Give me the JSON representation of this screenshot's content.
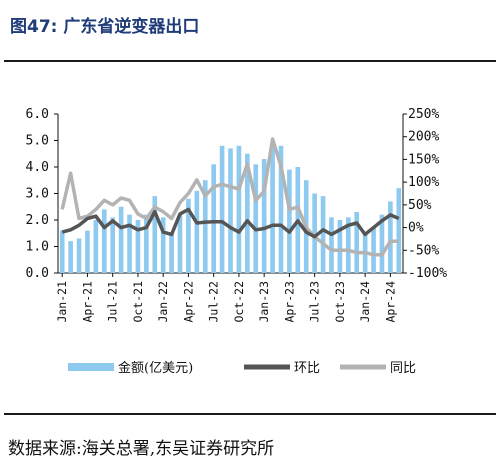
{
  "header": {
    "title": "图47:  广东省逆变器出口"
  },
  "footer": {
    "source": "数据来源:海关总署,东吴证券研究所"
  },
  "colors": {
    "bar": "#8ec9f0",
    "mom": "#555555",
    "yoy": "#b3b3b3"
  },
  "chart_data": {
    "type": "bar+line",
    "categories": [
      "Jan-21",
      "Feb-21",
      "Mar-21",
      "Apr-21",
      "May-21",
      "Jun-21",
      "Jul-21",
      "Aug-21",
      "Sep-21",
      "Oct-21",
      "Nov-21",
      "Dec-21",
      "Jan-22",
      "Feb-22",
      "Mar-22",
      "Apr-22",
      "May-22",
      "Jun-22",
      "Jul-22",
      "Aug-22",
      "Sep-22",
      "Oct-22",
      "Nov-22",
      "Dec-22",
      "Jan-23",
      "Feb-23",
      "Mar-23",
      "Apr-23",
      "May-23",
      "Jun-23",
      "Jul-23",
      "Aug-23",
      "Sep-23",
      "Oct-23",
      "Nov-23",
      "Dec-23",
      "Jan-24",
      "Feb-24",
      "Mar-24",
      "Apr-24",
      "May-24"
    ],
    "xtick_labels": [
      "Jan-21",
      "Apr-21",
      "Jul-21",
      "Oct-21",
      "Jan-22",
      "Apr-22",
      "Jul-22",
      "Oct-22",
      "Jan-23",
      "Apr-23",
      "Jul-23",
      "Oct-23",
      "Jan-24",
      "Apr-24"
    ],
    "y_left": {
      "ylim": [
        0,
        6
      ],
      "ticks": [
        "0.0",
        "1.0",
        "2.0",
        "3.0",
        "4.0",
        "5.0",
        "6.0"
      ]
    },
    "y_right": {
      "ylim": [
        -100,
        250
      ],
      "ticks": [
        "-100%",
        "-50%",
        "0%",
        "50%",
        "100%",
        "150%",
        "200%",
        "250%"
      ]
    },
    "series": [
      {
        "name": "金额(亿美元)",
        "kind": "bar",
        "axis": "left",
        "values": [
          1.6,
          1.2,
          1.3,
          1.6,
          2.0,
          2.4,
          2.1,
          2.5,
          2.2,
          2.0,
          2.2,
          2.9,
          2.1,
          1.5,
          2.2,
          2.8,
          3.1,
          3.5,
          4.1,
          4.8,
          4.7,
          4.8,
          4.5,
          4.1,
          4.3,
          4.9,
          4.8,
          3.9,
          4.0,
          3.5,
          3.0,
          2.9,
          2.1,
          2.0,
          2.1,
          2.3,
          1.5,
          1.7,
          2.2,
          2.7,
          3.2
        ]
      },
      {
        "name": "环比",
        "kind": "line",
        "axis": "right",
        "values": [
          -10,
          -5,
          5,
          20,
          25,
          0,
          15,
          0,
          5,
          -5,
          0,
          35,
          -10,
          -15,
          30,
          40,
          10,
          12,
          13,
          13,
          0,
          -10,
          15,
          -5,
          -2,
          5,
          5,
          -10,
          15,
          -10,
          -20,
          -5,
          -15,
          -5,
          5,
          10,
          -15,
          0,
          15,
          28,
          20
        ]
      },
      {
        "name": "同比",
        "kind": "line",
        "axis": "right",
        "values": [
          40,
          120,
          20,
          25,
          40,
          60,
          50,
          65,
          60,
          30,
          20,
          45,
          35,
          20,
          55,
          75,
          105,
          70,
          90,
          95,
          90,
          85,
          140,
          60,
          80,
          195,
          135,
          40,
          45,
          0,
          -20,
          -35,
          -50,
          -50,
          -50,
          -55,
          -55,
          -60,
          -60,
          -30,
          -30
        ]
      }
    ],
    "legend_position": "bottom"
  }
}
